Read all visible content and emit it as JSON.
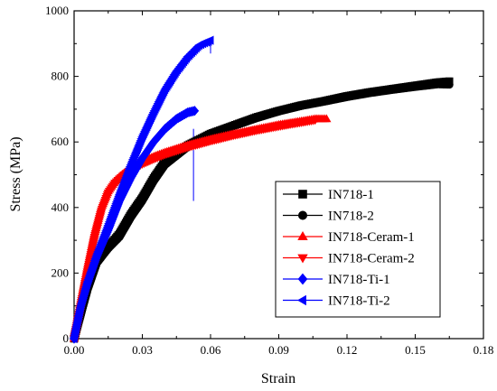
{
  "chart_data": {
    "type": "line",
    "title": "",
    "xlabel": "Strain",
    "ylabel": "Stress (MPa)",
    "xlim": [
      0.0,
      0.18
    ],
    "ylim": [
      0,
      1000
    ],
    "xticks": [
      "0.00",
      "0.03",
      "0.06",
      "0.09",
      "0.12",
      "0.15",
      "0.18"
    ],
    "yticks": [
      "0",
      "200",
      "400",
      "600",
      "800",
      "1000"
    ],
    "grid": false,
    "legend_position": "center-right",
    "series": [
      {
        "name": "IN718-1",
        "color": "#000000",
        "marker": "square",
        "x": [
          0.0,
          0.003,
          0.006,
          0.01,
          0.015,
          0.02,
          0.025,
          0.03,
          0.035,
          0.04,
          0.05,
          0.06,
          0.07,
          0.08,
          0.09,
          0.1,
          0.11,
          0.12,
          0.13,
          0.14,
          0.15,
          0.16,
          0.165
        ],
        "y": [
          0,
          80,
          160,
          240,
          280,
          320,
          380,
          430,
          490,
          540,
          590,
          625,
          650,
          675,
          695,
          712,
          725,
          740,
          752,
          762,
          772,
          782,
          785
        ]
      },
      {
        "name": "IN718-2",
        "color": "#000000",
        "marker": "circle",
        "x": [
          0.0,
          0.003,
          0.006,
          0.01,
          0.015,
          0.02,
          0.025,
          0.03,
          0.035,
          0.04,
          0.05,
          0.06,
          0.07,
          0.08,
          0.09,
          0.1,
          0.11,
          0.12,
          0.13,
          0.14,
          0.15,
          0.16,
          0.165
        ],
        "y": [
          0,
          75,
          150,
          230,
          275,
          310,
          370,
          420,
          480,
          530,
          585,
          620,
          648,
          672,
          693,
          710,
          723,
          737,
          749,
          759,
          768,
          776,
          775
        ]
      },
      {
        "name": "IN718-Ceram-1",
        "color": "#ff0000",
        "marker": "triangle-up",
        "x": [
          0.0,
          0.003,
          0.006,
          0.009,
          0.012,
          0.015,
          0.018,
          0.022,
          0.026,
          0.03,
          0.035,
          0.04,
          0.05,
          0.06,
          0.07,
          0.08,
          0.09,
          0.1,
          0.106,
          0.111
        ],
        "y": [
          0,
          110,
          220,
          320,
          400,
          450,
          480,
          505,
          525,
          540,
          555,
          568,
          590,
          608,
          624,
          638,
          652,
          663,
          670,
          670
        ]
      },
      {
        "name": "IN718-Ceram-2",
        "color": "#ff0000",
        "marker": "triangle-down",
        "x": [
          0.0,
          0.003,
          0.006,
          0.009,
          0.012,
          0.015,
          0.018,
          0.022,
          0.026,
          0.03,
          0.035,
          0.04,
          0.05,
          0.06,
          0.07,
          0.08,
          0.09,
          0.1,
          0.106
        ],
        "y": [
          0,
          105,
          210,
          310,
          390,
          445,
          475,
          500,
          518,
          533,
          548,
          562,
          584,
          603,
          620,
          635,
          648,
          660,
          667
        ]
      },
      {
        "name": "IN718-Ti-1",
        "color": "#0000ff",
        "marker": "diamond",
        "x": [
          0.0,
          0.003,
          0.006,
          0.01,
          0.015,
          0.02,
          0.025,
          0.03,
          0.035,
          0.04,
          0.045,
          0.05,
          0.053
        ],
        "y": [
          0,
          100,
          170,
          250,
          330,
          420,
          490,
          550,
          600,
          640,
          670,
          690,
          695
        ]
      },
      {
        "name": "IN718-Ti-2",
        "color": "#0000ff",
        "marker": "triangle-left",
        "x": [
          0.0,
          0.003,
          0.006,
          0.01,
          0.015,
          0.02,
          0.025,
          0.03,
          0.035,
          0.04,
          0.045,
          0.05,
          0.055,
          0.06
        ],
        "y": [
          0,
          100,
          175,
          255,
          345,
          440,
          530,
          615,
          690,
          760,
          815,
          860,
          895,
          910
        ]
      }
    ],
    "annotations": [
      {
        "type": "vline",
        "color": "#0000ff",
        "x": 0.0525,
        "y": [
          420,
          640
        ]
      },
      {
        "type": "vline",
        "color": "#0000ff",
        "x": 0.06,
        "y": [
          870,
          910
        ]
      }
    ]
  }
}
